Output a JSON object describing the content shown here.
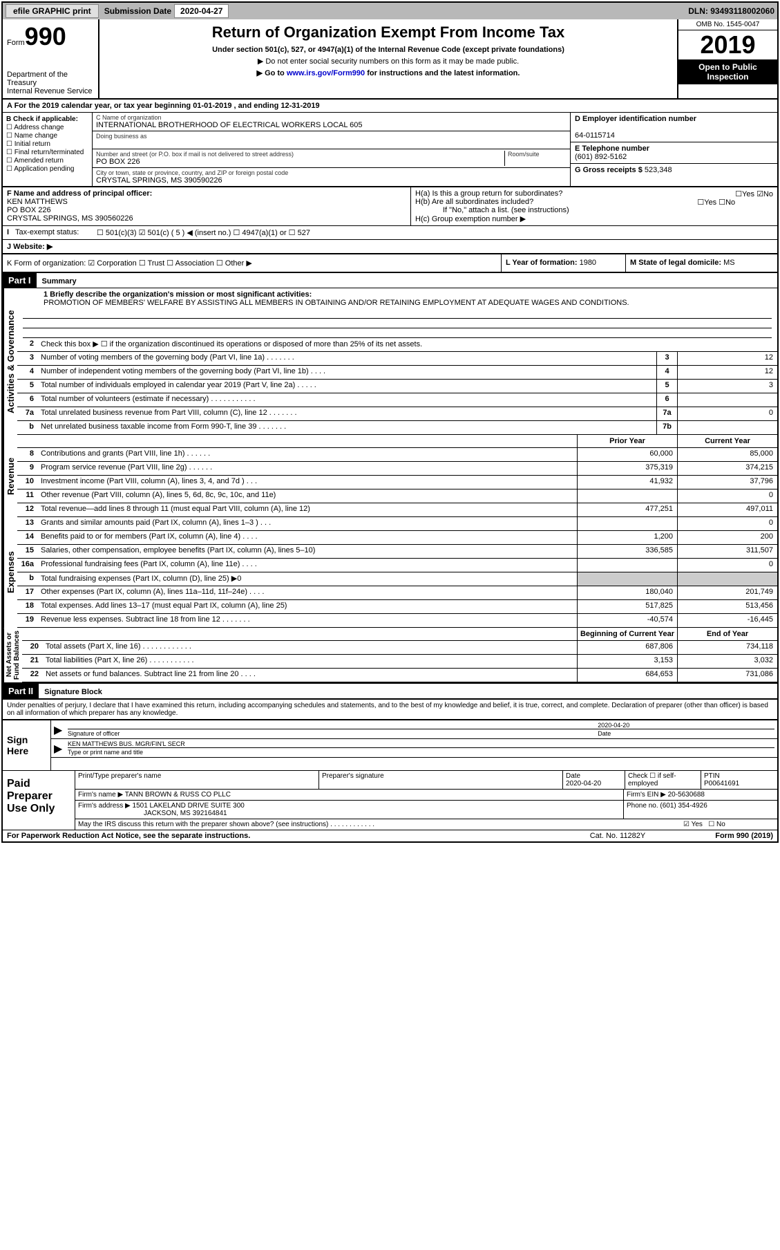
{
  "topbar": {
    "efile": "efile GRAPHIC print",
    "sub_lbl": "Submission Date",
    "sub_date": "2020-04-27",
    "dln_lbl": "DLN:",
    "dln": "93493118002060"
  },
  "hdr": {
    "form_word": "Form",
    "form_num": "990",
    "dept": "Department of the Treasury\nInternal Revenue Service",
    "title": "Return of Organization Exempt From Income Tax",
    "sub1": "Under section 501(c), 527, or 4947(a)(1) of the Internal Revenue Code (except private foundations)",
    "sub2": "▶ Do not enter social security numbers on this form as it may be made public.",
    "sub3_pre": "▶ Go to ",
    "sub3_link": "www.irs.gov/Form990",
    "sub3_post": " for instructions and the latest information.",
    "omb": "OMB No. 1545-0047",
    "year": "2019",
    "insp": "Open to Public Inspection"
  },
  "period": "A For the 2019 calendar year, or tax year beginning 01-01-2019   , and ending 12-31-2019",
  "boxB": {
    "lbl": "B Check if applicable:",
    "opts": [
      "☐ Address change",
      "☐ Name change",
      "☐ Initial return",
      "☐ Final return/terminated",
      "☐ Amended return",
      "☐ Application pending"
    ]
  },
  "boxC": {
    "name_lbl": "C Name of organization",
    "name": "INTERNATIONAL BROTHERHOOD OF ELECTRICAL WORKERS LOCAL 605",
    "dba_lbl": "Doing business as",
    "addr_lbl": "Number and street (or P.O. box if mail is not delivered to street address)",
    "addr": "PO BOX 226",
    "room_lbl": "Room/suite",
    "city_lbl": "City or town, state or province, country, and ZIP or foreign postal code",
    "city": "CRYSTAL SPRINGS, MS  390590226"
  },
  "boxD": {
    "lbl": "D Employer identification number",
    "val": "64-0115714"
  },
  "boxE": {
    "lbl": "E Telephone number",
    "val": "(601) 892-5162"
  },
  "boxG": {
    "lbl": "G Gross receipts $",
    "val": "523,348"
  },
  "boxF": {
    "lbl": "F Name and address of principal officer:",
    "name": "KEN MATTHEWS",
    "addr1": "PO BOX 226",
    "addr2": "CRYSTAL SPRINGS, MS  390560226"
  },
  "boxH": {
    "a": "H(a)  Is this a group return for subordinates?",
    "a_yes": "☐Yes",
    "a_no": "☑No",
    "b": "H(b)  Are all subordinates included?",
    "b_yes": "☐Yes",
    "b_no": "☐No",
    "b_note": "If \"No,\" attach a list. (see instructions)",
    "c": "H(c)  Group exemption number ▶"
  },
  "boxI": {
    "lbl": "Tax-exempt status:",
    "opts": "☐ 501(c)(3)   ☑ 501(c) ( 5 ) ◀ (insert no.)   ☐ 4947(a)(1) or  ☐ 527"
  },
  "boxJ": "J   Website: ▶",
  "boxK": "K Form of organization:  ☑ Corporation  ☐ Trust  ☐ Association  ☐ Other ▶",
  "boxL": {
    "lbl": "L Year of formation:",
    "val": "1980"
  },
  "boxM": {
    "lbl": "M State of legal domicile:",
    "val": "MS"
  },
  "parts": {
    "p1": "Part I",
    "p1_title": "Summary",
    "p2": "Part II",
    "p2_title": "Signature Block"
  },
  "summary": {
    "l1_lbl": "1  Briefly describe the organization's mission or most significant activities:",
    "l1_txt": "PROMOTION OF MEMBERS' WELFARE BY ASSISTING ALL MEMBERS IN OBTAINING AND/OR RETAINING EMPLOYMENT AT ADEQUATE WAGES AND CONDITIONS.",
    "l2": "Check this box ▶ ☐ if the organization discontinued its operations or disposed of more than 25% of its net assets.",
    "lines_ag": [
      {
        "n": "3",
        "t": "Number of voting members of the governing body (Part VI, line 1a)  .   .   .   .   .   .   .",
        "b": "3",
        "v": "12"
      },
      {
        "n": "4",
        "t": "Number of independent voting members of the governing body (Part VI, line 1b)  .   .   .   .",
        "b": "4",
        "v": "12"
      },
      {
        "n": "5",
        "t": "Total number of individuals employed in calendar year 2019 (Part V, line 2a)  .   .   .   .   .",
        "b": "5",
        "v": "3"
      },
      {
        "n": "6",
        "t": "Total number of volunteers (estimate if necessary)   .   .   .   .   .   .   .   .   .   .   .",
        "b": "6",
        "v": ""
      },
      {
        "n": "7a",
        "t": "Total unrelated business revenue from Part VIII, column (C), line 12  .   .   .   .   .   .   .",
        "b": "7a",
        "v": "0"
      },
      {
        "n": "b",
        "t": "Net unrelated business taxable income from Form 990-T, line 39   .   .   .   .   .   .   .",
        "b": "7b",
        "v": ""
      }
    ],
    "col_prior": "Prior Year",
    "col_curr": "Current Year",
    "lines_rev": [
      {
        "n": "8",
        "t": "Contributions and grants (Part VIII, line 1h)   .   .   .   .   .   .",
        "p": "60,000",
        "c": "85,000"
      },
      {
        "n": "9",
        "t": "Program service revenue (Part VIII, line 2g)   .   .   .   .   .   .",
        "p": "375,319",
        "c": "374,215"
      },
      {
        "n": "10",
        "t": "Investment income (Part VIII, column (A), lines 3, 4, and 7d )   .   .   .",
        "p": "41,932",
        "c": "37,796"
      },
      {
        "n": "11",
        "t": "Other revenue (Part VIII, column (A), lines 5, 6d, 8c, 9c, 10c, and 11e)",
        "p": "",
        "c": "0"
      },
      {
        "n": "12",
        "t": "Total revenue—add lines 8 through 11 (must equal Part VIII, column (A), line 12)",
        "p": "477,251",
        "c": "497,011"
      }
    ],
    "lines_exp": [
      {
        "n": "13",
        "t": "Grants and similar amounts paid (Part IX, column (A), lines 1–3 )  .   .   .",
        "p": "",
        "c": "0"
      },
      {
        "n": "14",
        "t": "Benefits paid to or for members (Part IX, column (A), line 4)   .   .   .   .",
        "p": "1,200",
        "c": "200"
      },
      {
        "n": "15",
        "t": "Salaries, other compensation, employee benefits (Part IX, column (A), lines 5–10)",
        "p": "336,585",
        "c": "311,507"
      },
      {
        "n": "16a",
        "t": "Professional fundraising fees (Part IX, column (A), line 11e)  .   .   .   .",
        "p": "",
        "c": "0"
      },
      {
        "n": "b",
        "t": "Total fundraising expenses (Part IX, column (D), line 25) ▶0",
        "p": "grey",
        "c": "grey"
      },
      {
        "n": "17",
        "t": "Other expenses (Part IX, column (A), lines 11a–11d, 11f–24e)  .   .   .   .",
        "p": "180,040",
        "c": "201,749"
      },
      {
        "n": "18",
        "t": "Total expenses. Add lines 13–17 (must equal Part IX, column (A), line 25)",
        "p": "517,825",
        "c": "513,456"
      },
      {
        "n": "19",
        "t": "Revenue less expenses. Subtract line 18 from line 12  .   .   .   .   .   .   .",
        "p": "-40,574",
        "c": "-16,445"
      }
    ],
    "col_beg": "Beginning of Current Year",
    "col_end": "End of Year",
    "lines_na": [
      {
        "n": "20",
        "t": "Total assets (Part X, line 16)  .   .   .   .   .   .   .   .   .   .   .   .",
        "p": "687,806",
        "c": "734,118"
      },
      {
        "n": "21",
        "t": "Total liabilities (Part X, line 26)  .   .   .   .   .   .   .   .   .   .   .",
        "p": "3,153",
        "c": "3,032"
      },
      {
        "n": "22",
        "t": "Net assets or fund balances. Subtract line 21 from line 20  .   .   .   .",
        "p": "684,653",
        "c": "731,086"
      }
    ]
  },
  "vlabels": {
    "ag": "Activities & Governance",
    "rev": "Revenue",
    "exp": "Expenses",
    "na": "Net Assets or\nFund Balances"
  },
  "penalty": "Under penalties of perjury, I declare that I have examined this return, including accompanying schedules and statements, and to the best of my knowledge and belief, it is true, correct, and complete. Declaration of preparer (other than officer) is based on all information of which preparer has any knowledge.",
  "sign": {
    "here": "Sign Here",
    "sig_lbl": "Signature of officer",
    "date": "2020-04-20",
    "date_lbl": "Date",
    "name": "KEN MATTHEWS  BUS. MGR/FIN'L SECR",
    "name_lbl": "Type or print name and title"
  },
  "prep": {
    "here": "Paid Preparer Use Only",
    "c1": "Print/Type preparer's name",
    "c2": "Preparer's signature",
    "c3": "Date",
    "c3v": "2020-04-20",
    "c4": "Check ☐ if self-employed",
    "c5": "PTIN",
    "c5v": "P00641691",
    "firm_lbl": "Firm's name    ▶",
    "firm": "TANN BROWN & RUSS CO PLLC",
    "ein_lbl": "Firm's EIN ▶",
    "ein": "20-5630688",
    "addr_lbl": "Firm's address ▶",
    "addr1": "1501 LAKELAND DRIVE SUITE 300",
    "addr2": "JACKSON, MS  392164841",
    "phone_lbl": "Phone no.",
    "phone": "(601) 354-4926",
    "discuss": "May the IRS discuss this return with the preparer shown above? (see instructions)   .   .   .   .   .   .   .   .   .   .   .   .",
    "d_yes": "☑ Yes",
    "d_no": "☐ No"
  },
  "footer": {
    "l": "For Paperwork Reduction Act Notice, see the separate instructions.",
    "c": "Cat. No. 11282Y",
    "r": "Form 990 (2019)"
  }
}
